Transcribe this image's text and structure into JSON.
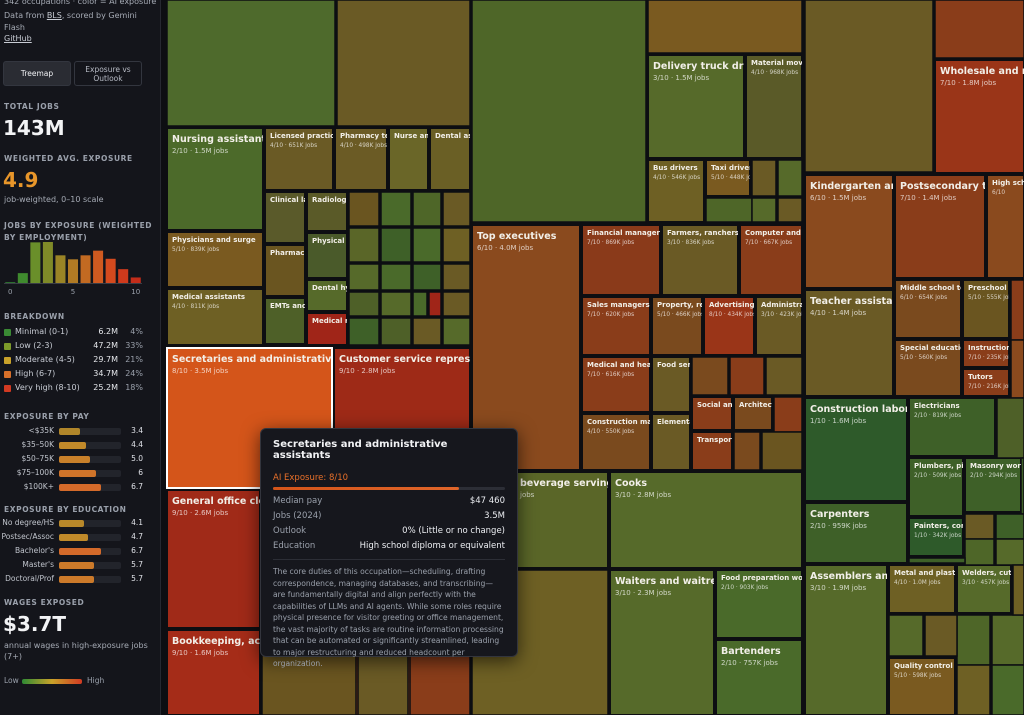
{
  "sidebar": {
    "intro": "342 occupations · color = AI exposure",
    "source_prefix": "Data from ",
    "source_link": "BLS",
    "source_suffix": ", scored by Gemini Flash",
    "github": "GitHub",
    "tabs": [
      "Treemap",
      "Exposure vs Outlook"
    ],
    "total_jobs": {
      "heading": "TOTAL JOBS",
      "value": "143M"
    },
    "avg_exposure": {
      "heading": "WEIGHTED AVG. EXPOSURE",
      "value": "4.9",
      "note": "job-weighted, 0–10 scale"
    },
    "jobs_by_exposure": {
      "type": "bar",
      "heading": "JOBS BY EXPOSURE (WEIGHTED BY EMPLOYMENT)",
      "x": [
        0,
        1,
        2,
        3,
        4,
        5,
        6,
        7,
        8,
        9,
        10
      ],
      "values": [
        0.5,
        5.7,
        23.5,
        23.7,
        16,
        13.7,
        16,
        18.7,
        14,
        8,
        3.2
      ],
      "colors": [
        "#2f7d32",
        "#3f8a2e",
        "#6a8f2a",
        "#7f8a28",
        "#9a8426",
        "#b07a24",
        "#c26a22",
        "#cf5a20",
        "#d44a1e",
        "#cf3a1c",
        "#c42d1a"
      ],
      "xlim": [
        -0.5,
        10.5
      ],
      "xticks": [
        0,
        5,
        10
      ]
    },
    "breakdown": {
      "heading": "BREAKDOWN",
      "rows": [
        {
          "label": "Minimal (0-1)",
          "jobs": "6.2M",
          "share": "4%",
          "color": "#3a8a34"
        },
        {
          "label": "Low (2-3)",
          "jobs": "47.2M",
          "share": "33%",
          "color": "#7d9a2a"
        },
        {
          "label": "Moderate (4-5)",
          "jobs": "29.7M",
          "share": "21%",
          "color": "#c9a22a"
        },
        {
          "label": "High (6-7)",
          "jobs": "34.7M",
          "share": "24%",
          "color": "#d8702a"
        },
        {
          "label": "Very high (8-10)",
          "jobs": "25.2M",
          "share": "18%",
          "color": "#d23a22"
        }
      ]
    },
    "by_pay": {
      "heading": "EXPOSURE BY PAY",
      "rows": [
        {
          "label": "<$35K",
          "value": 3.4,
          "color": "#b0862a"
        },
        {
          "label": "$35–50K",
          "value": 4.4,
          "color": "#c28a2a"
        },
        {
          "label": "$50–75K",
          "value": {
            "value": 5,
            "label": "5.0"
          },
          "color": "#c8802a"
        },
        {
          "label": "$75–100K",
          "value": 6,
          "color": "#d0742a"
        },
        {
          "label": "$100K+",
          "value": 6.7,
          "color": "#d46a2a"
        }
      ]
    },
    "by_education": {
      "heading": "EXPOSURE BY EDUCATION",
      "rows": [
        {
          "label": "No degree/HS",
          "value": 4.1,
          "color": "#b8882a"
        },
        {
          "label": "Postsec/Assoc",
          "value": 4.7,
          "color": "#c08a2a"
        },
        {
          "label": "Bachelor's",
          "value": 6.7,
          "color": "#d46a2a"
        },
        {
          "label": "Master's",
          "value": 5.7,
          "color": "#cc7a2a"
        },
        {
          "label": "Doctoral/Prof",
          "value": 5.7,
          "color": "#cc7a2a"
        }
      ]
    },
    "wages": {
      "heading": "WAGES EXPOSED",
      "value": "$3.7T",
      "note": "annual wages in high-exposure jobs (7+)"
    },
    "legend": {
      "low": "Low",
      "high": "High"
    }
  },
  "treemap": {
    "tiles": [
      {
        "name": "Nursing assistants ar",
        "detail": "2/10 · 1.5M jobs",
        "color": "#4c6a2a"
      },
      {
        "name": "Licensed practical ar",
        "detail": "4/10 · 651K jobs",
        "color": "#6a5a25"
      },
      {
        "name": "Pharmacy tech",
        "detail": "4/10 · 498K jobs",
        "color": "#6b5b25"
      },
      {
        "name": "Nurse ane",
        "color": "#6a6628"
      },
      {
        "name": "Dental assi",
        "color": "#6a5f25"
      },
      {
        "name": "Physicians and surge",
        "detail": "5/10 · 839K jobs",
        "color": "#7a5a20"
      },
      {
        "name": "Medical assistants",
        "detail": "4/10 · 811K jobs",
        "color": "#6e6024"
      },
      {
        "name": "Clinical lab",
        "color": "#5a5a2a"
      },
      {
        "name": "Radiologic",
        "color": "#5a5a28"
      },
      {
        "name": "Physical th",
        "color": "#4a5a2a"
      },
      {
        "name": "Pharmacist",
        "color": "#6a5520"
      },
      {
        "name": "Dental hyg",
        "color": "#566a2a"
      },
      {
        "name": "EMTs and p",
        "color": "#4e6028"
      },
      {
        "name": "Medical re",
        "color": "#a02518"
      },
      {
        "name": "Secretaries and administrative assis",
        "detail": "8/10 · 3.5M jobs",
        "color": "#d4551a"
      },
      {
        "name": "Customer service representa",
        "detail": "9/10 · 2.8M jobs",
        "color": "#9e2a17"
      },
      {
        "name": "General office clerk",
        "detail": "9/10 · 2.6M jobs",
        "color": "#a02a18"
      },
      {
        "name": "Bookkeeping, accou",
        "detail": "9/10 · 1.6M jobs",
        "color": "#a52c18"
      },
      {
        "name": "Top executives",
        "detail": "6/10 · 4.0M jobs",
        "color": "#8a4a1e"
      },
      {
        "name": "Financial managers",
        "detail": "7/10 · 869K jobs",
        "color": "#8a3a1a"
      },
      {
        "name": "Farmers, ranchers, a",
        "detail": "3/10 · 836K jobs",
        "color": "#6a5a25"
      },
      {
        "name": "Computer and inf",
        "detail": "7/10 · 667K jobs",
        "color": "#8a3d1a"
      },
      {
        "name": "Sales managers",
        "detail": "7/10 · 620K jobs",
        "color": "#8a3d1a"
      },
      {
        "name": "Property, real e",
        "detail": "5/10 · 466K jobs",
        "color": "#7a4a1e"
      },
      {
        "name": "Advertising, p",
        "detail": "8/10 · 434K jobs",
        "color": "#9a3518"
      },
      {
        "name": "Administrati",
        "detail": "3/10 · 423K jobs",
        "color": "#6a5a25"
      },
      {
        "name": "Medical and health",
        "detail": "7/10 · 616K jobs",
        "color": "#8a3d1a"
      },
      {
        "name": "Food servi",
        "color": "#6a5a25"
      },
      {
        "name": "Construction mana",
        "detail": "4/10 · 550K jobs",
        "color": "#7a4a1e"
      },
      {
        "name": "Elementar",
        "color": "#6a5a25"
      },
      {
        "name": "Social and",
        "color": "#8a3d1a"
      },
      {
        "name": "Architectur",
        "color": "#7a4a1e"
      },
      {
        "name": "Transporta",
        "color": "#8a3d1a"
      },
      {
        "name": "Delivery truck driver",
        "detail": "3/10 · 1.5M jobs",
        "color": "#566a2a"
      },
      {
        "name": "Material movin",
        "detail": "4/10 · 968K jobs",
        "color": "#5a5a28"
      },
      {
        "name": "Bus drivers",
        "detail": "4/10 · 546K jobs",
        "color": "#6e6024"
      },
      {
        "name": "Taxi drivers,",
        "detail": "5/10 · 448K jobs",
        "color": "#7a5a20"
      },
      {
        "name": "beverage serving a",
        "detail": "jobs",
        "color": "#5a6628"
      },
      {
        "name": "Cooks",
        "detail": "3/10 · 2.8M jobs",
        "color": "#566a2a"
      },
      {
        "name": "Waiters and waitresse",
        "detail": "3/10 · 2.3M jobs",
        "color": "#566a2a"
      },
      {
        "name": "Food preparation wo",
        "detail": "2/10 · 903K jobs",
        "color": "#4a6a2a"
      },
      {
        "name": "Bartenders",
        "detail": "2/10 · 757K jobs",
        "color": "#4a6a2a"
      },
      {
        "name": "Wholesale and manu",
        "detail": "7/10 · 1.8M jobs",
        "color": "#9a3518"
      },
      {
        "name": "Kindergarten and ele",
        "detail": "6/10 · 1.5M jobs",
        "color": "#8a4a1e"
      },
      {
        "name": "Postsecondary teach",
        "detail": "7/10 · 1.4M jobs",
        "color": "#8a3d1a"
      },
      {
        "name": "High scho",
        "detail": "6/10",
        "color": "#8a4a1e"
      },
      {
        "name": "Teacher assistants",
        "detail": "4/10 · 1.4M jobs",
        "color": "#6a5a25"
      },
      {
        "name": "Middle school teac",
        "detail": "6/10 · 654K jobs",
        "color": "#7a4a1e"
      },
      {
        "name": "Preschool teache",
        "detail": "5/10 · 555K jobs",
        "color": "#6a5520"
      },
      {
        "name": "Special education te",
        "detail": "5/10 · 560K jobs",
        "color": "#7a4a1e"
      },
      {
        "name": "Instructional c",
        "detail": "7/10 · 235K jobs",
        "color": "#8a3d1a"
      },
      {
        "name": "Tutors",
        "detail": "7/10 · 216K jobs",
        "color": "#8a3d1a"
      },
      {
        "name": "Construction laborers",
        "detail": "1/10 · 1.6M jobs",
        "color": "#2e5a2a"
      },
      {
        "name": "Electricians",
        "detail": "2/10 · 819K jobs",
        "color": "#3e6028"
      },
      {
        "name": "Plumbers, pipe",
        "detail": "2/10 · 509K jobs",
        "color": "#3e6028"
      },
      {
        "name": "Masonry worker",
        "detail": "2/10 · 294K jobs",
        "color": "#3e6028"
      },
      {
        "name": "Carpenters",
        "detail": "2/10 · 959K jobs",
        "color": "#3e6028"
      },
      {
        "name": "Painters, constr",
        "detail": "1/10 · 342K jobs",
        "color": "#2e5a2a"
      },
      {
        "name": "Assemblers and fabr",
        "detail": "3/10 · 1.9M jobs",
        "color": "#566a2a"
      },
      {
        "name": "Metal and plastic m",
        "detail": "4/10 · 1.0M jobs",
        "color": "#6e6024"
      },
      {
        "name": "Welders, cutter",
        "detail": "3/10 · 457K jobs",
        "color": "#566a2a"
      },
      {
        "name": "Quality control insp",
        "detail": "5/10 · 598K jobs",
        "color": "#7a5a20"
      }
    ]
  },
  "tooltip": {
    "title": "Secretaries and administrative assistants",
    "exposure": {
      "value": 8,
      "label": "AI Exposure: 8/10"
    },
    "rows": [
      [
        "Median pay",
        "$47 460"
      ],
      [
        "Jobs (2024)",
        "3.5M"
      ],
      [
        "Outlook",
        "0% (Little or no change)"
      ],
      [
        "Education",
        "High school diploma or equivalent"
      ]
    ],
    "description": "The core duties of this occupation—scheduling, drafting correspondence, managing databases, and transcribing—are fundamentally digital and align perfectly with the capabilities of LLMs and AI agents. While some roles require physical presence for visitor greeting or office management, the vast majority of tasks are routine information processing that can be automated or significantly streamlined, leading to major restructuring and reduced headcount per organization."
  }
}
